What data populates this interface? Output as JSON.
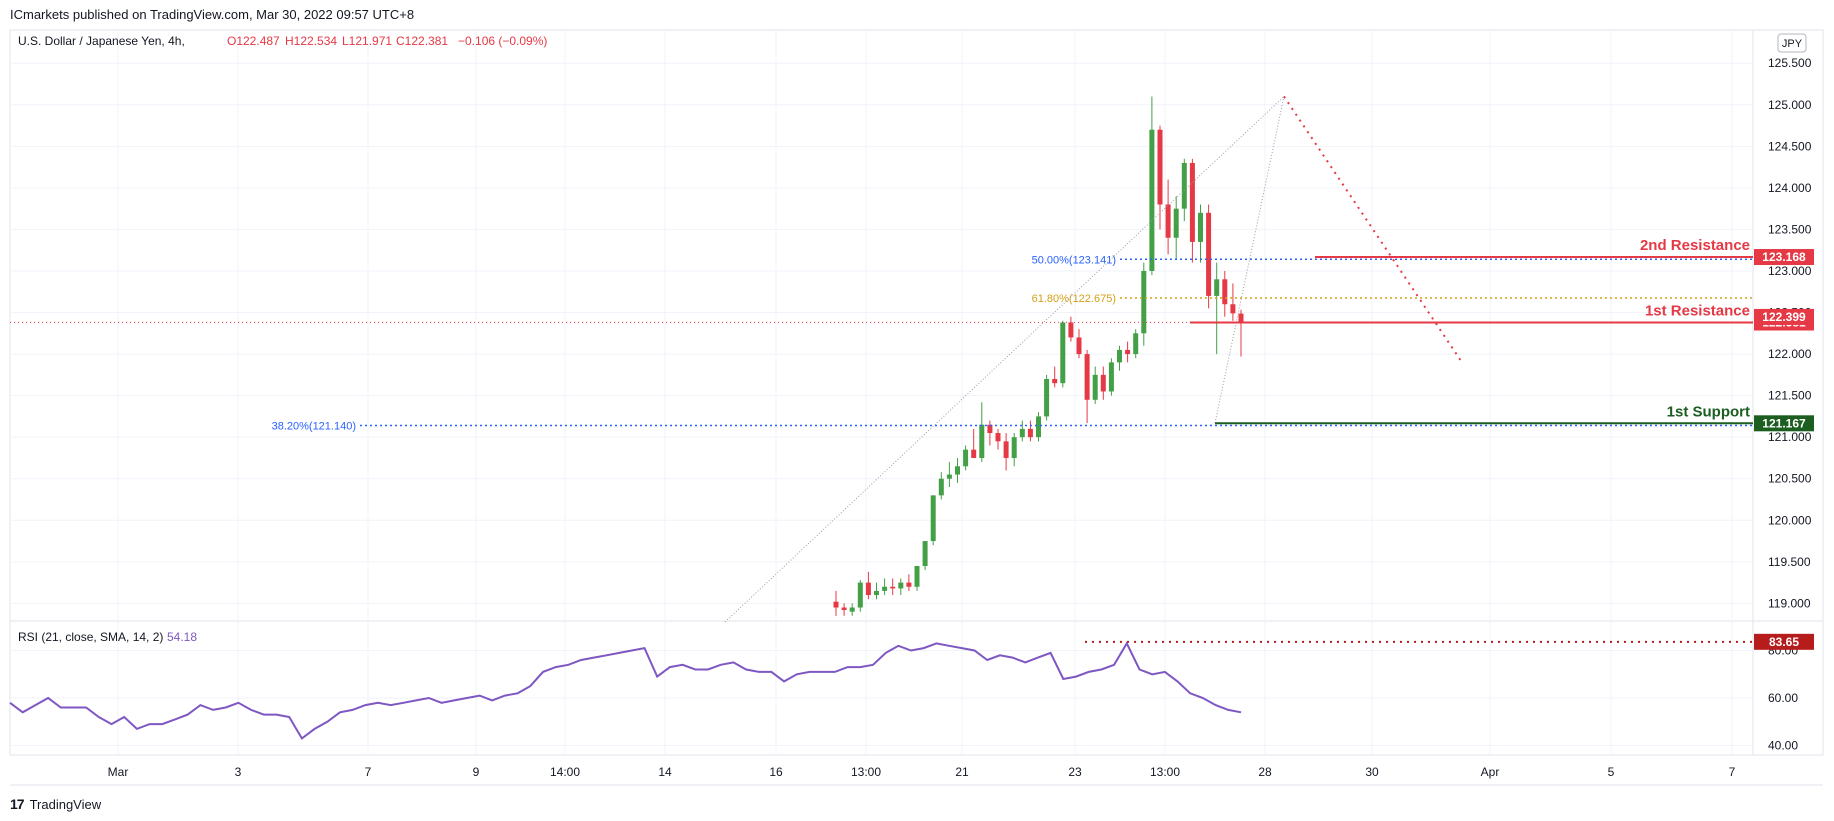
{
  "header": {
    "publisher_line": "ICmarkets published on TradingView.com, Mar 30, 2022 09:57 UTC+8"
  },
  "legend": {
    "symbol": "U.S. Dollar / Japanese Yen, 4h,",
    "open": "O122.487",
    "high": "H122.534",
    "low": "L121.971",
    "close": "C122.381",
    "change": "−0.106 (−0.09%)"
  },
  "rsi_legend": {
    "label": "RSI (21, close, SMA, 14, 2)",
    "value": "54.18"
  },
  "currency_button": "JPY",
  "footer": {
    "brand": "TradingView",
    "logo": "17"
  },
  "colors": {
    "up": "#43a047",
    "down": "#e53945",
    "resistance": "#e53945",
    "support": "#1b5e20",
    "fib_blue": "#2962ff",
    "fib_orange": "#d4a017",
    "rsi": "#7e57c2",
    "grid": "#f0f3fa"
  },
  "chart_data": [
    {
      "type": "candlestick",
      "title": "U.S. Dollar / Japanese Yen, 4h",
      "x_labels": [
        "Mar",
        "3",
        "7",
        "9",
        "14:00",
        "14",
        "16",
        "13:00",
        "21",
        "23",
        "13:00",
        "28",
        "30",
        "Apr",
        "5",
        "7"
      ],
      "y_ticks": [
        "119.000",
        "119.500",
        "120.000",
        "120.500",
        "121.000",
        "121.500",
        "122.000",
        "122.500",
        "123.000",
        "123.500",
        "124.000",
        "124.500",
        "125.000",
        "125.500"
      ],
      "ylim": [
        118.8,
        125.9
      ],
      "candles": [
        {
          "o": 119.02,
          "h": 119.15,
          "l": 118.85,
          "c": 118.95
        },
        {
          "o": 118.95,
          "h": 119.0,
          "l": 118.85,
          "c": 118.92
        },
        {
          "o": 118.9,
          "h": 119.0,
          "l": 118.85,
          "c": 118.95
        },
        {
          "o": 118.95,
          "h": 119.28,
          "l": 118.9,
          "c": 119.25
        },
        {
          "o": 119.25,
          "h": 119.38,
          "l": 119.05,
          "c": 119.1
        },
        {
          "o": 119.1,
          "h": 119.25,
          "l": 119.05,
          "c": 119.15
        },
        {
          "o": 119.15,
          "h": 119.3,
          "l": 119.1,
          "c": 119.2
        },
        {
          "o": 119.2,
          "h": 119.3,
          "l": 119.1,
          "c": 119.18
        },
        {
          "o": 119.18,
          "h": 119.3,
          "l": 119.1,
          "c": 119.25
        },
        {
          "o": 119.25,
          "h": 119.35,
          "l": 119.15,
          "c": 119.2
        },
        {
          "o": 119.2,
          "h": 119.45,
          "l": 119.15,
          "c": 119.45
        },
        {
          "o": 119.45,
          "h": 119.75,
          "l": 119.4,
          "c": 119.75
        },
        {
          "o": 119.75,
          "h": 120.3,
          "l": 119.7,
          "c": 120.3
        },
        {
          "o": 120.3,
          "h": 120.58,
          "l": 120.25,
          "c": 120.5
        },
        {
          "o": 120.5,
          "h": 120.7,
          "l": 120.4,
          "c": 120.55
        },
        {
          "o": 120.55,
          "h": 120.75,
          "l": 120.45,
          "c": 120.65
        },
        {
          "o": 120.65,
          "h": 120.9,
          "l": 120.6,
          "c": 120.85
        },
        {
          "o": 120.85,
          "h": 121.1,
          "l": 120.75,
          "c": 120.75
        },
        {
          "o": 120.75,
          "h": 121.42,
          "l": 120.7,
          "c": 121.15
        },
        {
          "o": 121.15,
          "h": 121.2,
          "l": 120.9,
          "c": 121.05
        },
        {
          "o": 121.05,
          "h": 121.1,
          "l": 120.85,
          "c": 120.95
        },
        {
          "o": 120.95,
          "h": 121.05,
          "l": 120.6,
          "c": 120.75
        },
        {
          "o": 120.75,
          "h": 121.05,
          "l": 120.65,
          "c": 121.0
        },
        {
          "o": 121.0,
          "h": 121.2,
          "l": 120.95,
          "c": 121.1
        },
        {
          "o": 121.1,
          "h": 121.2,
          "l": 120.95,
          "c": 121.0
        },
        {
          "o": 121.0,
          "h": 121.3,
          "l": 120.95,
          "c": 121.25
        },
        {
          "o": 121.25,
          "h": 121.75,
          "l": 121.2,
          "c": 121.7
        },
        {
          "o": 121.7,
          "h": 121.85,
          "l": 121.6,
          "c": 121.65
        },
        {
          "o": 121.65,
          "h": 122.4,
          "l": 121.6,
          "c": 122.38
        },
        {
          "o": 122.38,
          "h": 122.45,
          "l": 122.15,
          "c": 122.2
        },
        {
          "o": 122.2,
          "h": 122.3,
          "l": 121.95,
          "c": 122.0
        },
        {
          "o": 122.0,
          "h": 122.05,
          "l": 121.17,
          "c": 121.45
        },
        {
          "o": 121.45,
          "h": 121.85,
          "l": 121.4,
          "c": 121.75
        },
        {
          "o": 121.75,
          "h": 121.85,
          "l": 121.45,
          "c": 121.55
        },
        {
          "o": 121.55,
          "h": 121.95,
          "l": 121.5,
          "c": 121.9
        },
        {
          "o": 121.9,
          "h": 122.1,
          "l": 121.8,
          "c": 122.05
        },
        {
          "o": 122.05,
          "h": 122.15,
          "l": 121.9,
          "c": 122.0
        },
        {
          "o": 122.0,
          "h": 122.3,
          "l": 121.95,
          "c": 122.25
        },
        {
          "o": 122.25,
          "h": 123.1,
          "l": 122.1,
          "c": 123.0
        },
        {
          "o": 123.0,
          "h": 125.1,
          "l": 122.95,
          "c": 124.7
        },
        {
          "o": 124.7,
          "h": 124.75,
          "l": 123.5,
          "c": 123.8
        },
        {
          "o": 123.8,
          "h": 124.1,
          "l": 123.2,
          "c": 123.4
        },
        {
          "o": 123.4,
          "h": 123.9,
          "l": 123.15,
          "c": 123.75
        },
        {
          "o": 123.75,
          "h": 124.35,
          "l": 123.6,
          "c": 124.3
        },
        {
          "o": 124.3,
          "h": 124.35,
          "l": 123.1,
          "c": 123.35
        },
        {
          "o": 123.35,
          "h": 123.8,
          "l": 123.1,
          "c": 123.7
        },
        {
          "o": 123.7,
          "h": 123.8,
          "l": 122.55,
          "c": 122.7
        },
        {
          "o": 122.7,
          "h": 123.1,
          "l": 122.0,
          "c": 122.9
        },
        {
          "o": 122.9,
          "h": 123.0,
          "l": 122.45,
          "c": 122.6
        },
        {
          "o": 122.6,
          "h": 122.85,
          "l": 122.4,
          "c": 122.49
        },
        {
          "o": 122.487,
          "h": 122.534,
          "l": 121.971,
          "c": 122.381
        }
      ],
      "fib_levels": [
        {
          "label": "38.20%(121.140)",
          "value": 121.14,
          "color": "#2962ff"
        },
        {
          "label": "50.00%(123.141)",
          "value": 123.141,
          "color": "#2962ff"
        },
        {
          "label": "61.80%(122.675)",
          "value": 122.675,
          "color": "#d4a017"
        }
      ],
      "levels": [
        {
          "label": "2nd Resistance",
          "value": 123.168,
          "tag": "123.168",
          "color": "#e53945"
        },
        {
          "label": "1st Resistance",
          "value": 122.38,
          "tag": "122.381",
          "color": "#e53945"
        },
        {
          "label": "1st Support",
          "value": 121.167,
          "tag": "121.167",
          "color": "#1b5e20"
        }
      ],
      "extra_tag": {
        "tag": "122.399",
        "value": 122.399,
        "color": "#e53945"
      }
    },
    {
      "type": "line",
      "title": "RSI (21, close, SMA, 14, 2)",
      "y_ticks": [
        "40.00",
        "60.00",
        "80.00"
      ],
      "ylim": [
        36,
        92
      ],
      "values": [
        58,
        54,
        57,
        60,
        56,
        56,
        56,
        52,
        49,
        52,
        47,
        49,
        49,
        51,
        53,
        57,
        55,
        56,
        58,
        55,
        53,
        53,
        52,
        43,
        47,
        50,
        54,
        55,
        57,
        58,
        57,
        58,
        59,
        60,
        58,
        59,
        60,
        61,
        59,
        61,
        62,
        65,
        71,
        73,
        74,
        76,
        77,
        78,
        79,
        80,
        81,
        69,
        73,
        74,
        72,
        72,
        74,
        75,
        72,
        71,
        71,
        67,
        70,
        71,
        71,
        71,
        73,
        73,
        74,
        79,
        82,
        80,
        81,
        83,
        82,
        81,
        80,
        76,
        78,
        77,
        75,
        77,
        79,
        68,
        69,
        71,
        72,
        74,
        83,
        72,
        70,
        71,
        67,
        62,
        60,
        57,
        55,
        54
      ],
      "levels": [
        {
          "tag": "83.65",
          "value": 83.65,
          "color": "#b71c1c"
        }
      ],
      "current": "54.18"
    }
  ]
}
